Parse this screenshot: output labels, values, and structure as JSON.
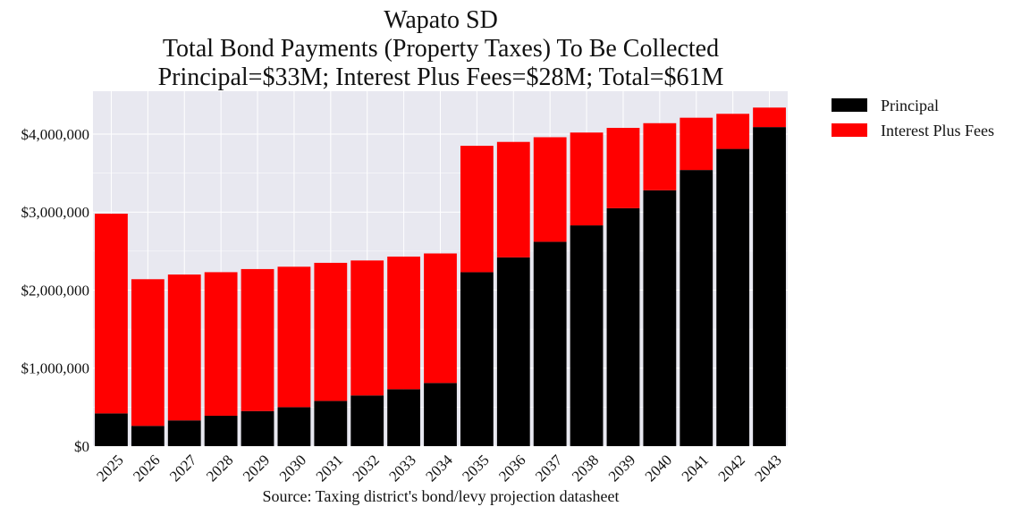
{
  "chart_data": {
    "type": "bar",
    "stacked": true,
    "title": [
      "Wapato SD",
      "Total Bond Payments (Property Taxes) To Be Collected",
      "Principal=$33M; Interest Plus Fees=$28M; Total=$61M"
    ],
    "xlabel": "Source: Taxing district's bond/levy projection datasheet",
    "ylabel": "",
    "categories": [
      "2025",
      "2026",
      "2027",
      "2028",
      "2029",
      "2030",
      "2031",
      "2032",
      "2033",
      "2034",
      "2035",
      "2036",
      "2037",
      "2038",
      "2039",
      "2040",
      "2041",
      "2042",
      "2043"
    ],
    "series": [
      {
        "name": "Principal",
        "color": "#000000",
        "values": [
          420000,
          260000,
          330000,
          390000,
          450000,
          500000,
          580000,
          650000,
          730000,
          810000,
          2230000,
          2420000,
          2620000,
          2830000,
          3050000,
          3280000,
          3540000,
          3810000,
          4090000
        ]
      },
      {
        "name": "Interest Plus Fees",
        "color": "#ff0000",
        "values": [
          2560000,
          1880000,
          1870000,
          1840000,
          1820000,
          1800000,
          1770000,
          1730000,
          1700000,
          1660000,
          1620000,
          1480000,
          1340000,
          1190000,
          1030000,
          860000,
          670000,
          450000,
          250000
        ]
      }
    ],
    "ylim": [
      0,
      4550000
    ],
    "yticks": [
      0,
      1000000,
      2000000,
      3000000,
      4000000
    ],
    "ytick_labels": [
      "$0",
      "$1,000,000",
      "$2,000,000",
      "$3,000,000",
      "$4,000,000"
    ],
    "grid": true,
    "legend_placement": "outside-top-right",
    "background_color": "#e8e8f0",
    "grid_color": "#ffffff"
  }
}
